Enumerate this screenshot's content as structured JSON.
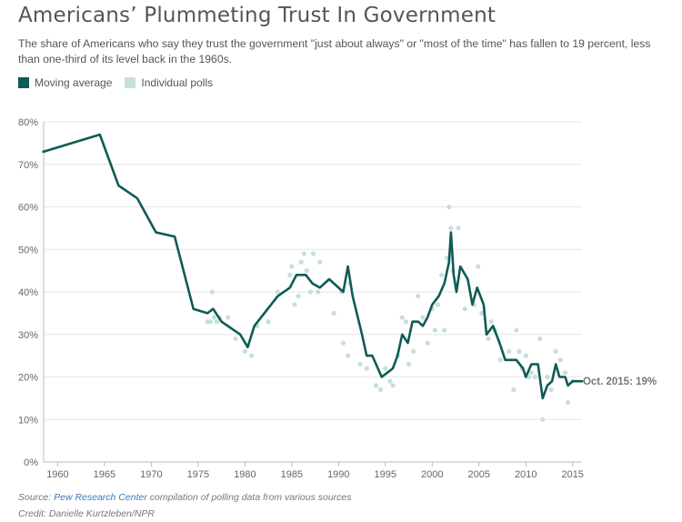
{
  "title": "Americans’ Plummeting Trust In Government",
  "subtitle": "The share of Americans who say they trust the government \"just about always\" or \"most of the time\" has fallen to 19 percent, less than one-third of its level back in the 1960s.",
  "legend": {
    "moving_average": "Moving average",
    "individual_polls": "Individual polls"
  },
  "colors": {
    "line": "#0f5b55",
    "points": "#c4e0dc",
    "grid": "#e6e6e6",
    "axis": "#bbbbbb"
  },
  "source": {
    "prefix": "Source: ",
    "link": "Pew Research Center",
    "suffix": " compilation of polling data from various sources"
  },
  "credit": "Credit: Danielle Kurtzleben/NPR",
  "chart_data": {
    "type": "line",
    "xlim": [
      1958.5,
      2016
    ],
    "ylim": [
      0,
      80
    ],
    "x_ticks": [
      {
        "value": 1960,
        "label": "1960"
      },
      {
        "value": 1965,
        "label": "1965"
      },
      {
        "value": 1970,
        "label": "1970"
      },
      {
        "value": 1975,
        "label": "1975"
      },
      {
        "value": 1980,
        "label": "1980"
      },
      {
        "value": 1985,
        "label": "1985"
      },
      {
        "value": 1990,
        "label": "1990"
      },
      {
        "value": 1995,
        "label": "1995"
      },
      {
        "value": 2000,
        "label": "2000"
      },
      {
        "value": 2005,
        "label": "2005"
      },
      {
        "value": 2010,
        "label": "2010"
      },
      {
        "value": 2015,
        "label": "2015"
      }
    ],
    "y_ticks": [
      {
        "value": 0,
        "label": "0%"
      },
      {
        "value": 10,
        "label": "10%"
      },
      {
        "value": 20,
        "label": "20%"
      },
      {
        "value": 30,
        "label": "30%"
      },
      {
        "value": 40,
        "label": "40%"
      },
      {
        "value": 50,
        "label": "50%"
      },
      {
        "value": 60,
        "label": "60%"
      },
      {
        "value": 70,
        "label": "70%"
      },
      {
        "value": 80,
        "label": "80%"
      }
    ],
    "grid": true,
    "annotation": {
      "text": "Oct. 2015: 19%",
      "x": 2015.8,
      "y": 19
    },
    "moving_average": [
      [
        1958.5,
        73
      ],
      [
        1964.5,
        77
      ],
      [
        1966.5,
        65
      ],
      [
        1968.5,
        62
      ],
      [
        1970.5,
        54
      ],
      [
        1972.5,
        53
      ],
      [
        1974.5,
        36
      ],
      [
        1976,
        35
      ],
      [
        1976.6,
        36
      ],
      [
        1977.5,
        33
      ],
      [
        1979.5,
        30
      ],
      [
        1980.3,
        27
      ],
      [
        1981,
        32
      ],
      [
        1983.5,
        39
      ],
      [
        1984.8,
        41
      ],
      [
        1985.5,
        44
      ],
      [
        1986.5,
        44
      ],
      [
        1987.2,
        42
      ],
      [
        1988,
        41
      ],
      [
        1989,
        43
      ],
      [
        1990.5,
        40
      ],
      [
        1991,
        46
      ],
      [
        1991.5,
        39
      ],
      [
        1992.5,
        30
      ],
      [
        1993,
        25
      ],
      [
        1993.6,
        25
      ],
      [
        1994.2,
        22
      ],
      [
        1994.6,
        20
      ],
      [
        1995.2,
        21
      ],
      [
        1995.8,
        22
      ],
      [
        1996.3,
        25
      ],
      [
        1996.8,
        30
      ],
      [
        1997.4,
        28
      ],
      [
        1997.9,
        33
      ],
      [
        1998.5,
        33
      ],
      [
        1999,
        32
      ],
      [
        1999.5,
        34
      ],
      [
        2000,
        37
      ],
      [
        2000.7,
        39
      ],
      [
        2001.3,
        42
      ],
      [
        2001.8,
        47
      ],
      [
        2002,
        54
      ],
      [
        2002.3,
        44
      ],
      [
        2002.6,
        40
      ],
      [
        2003,
        46
      ],
      [
        2003.8,
        43
      ],
      [
        2004.3,
        37
      ],
      [
        2004.8,
        41
      ],
      [
        2005.5,
        37
      ],
      [
        2005.8,
        30
      ],
      [
        2006.5,
        32
      ],
      [
        2007.2,
        28
      ],
      [
        2007.8,
        24
      ],
      [
        2009,
        24
      ],
      [
        2009.7,
        22
      ],
      [
        2010,
        20
      ],
      [
        2010.6,
        23
      ],
      [
        2011.3,
        23
      ],
      [
        2011.8,
        15
      ],
      [
        2012.3,
        18
      ],
      [
        2012.8,
        19
      ],
      [
        2013.2,
        23
      ],
      [
        2013.6,
        20
      ],
      [
        2014.2,
        20
      ],
      [
        2014.5,
        18
      ],
      [
        2015,
        19
      ],
      [
        2016,
        19
      ]
    ],
    "individual_polls": [
      [
        1958.5,
        73
      ],
      [
        1976,
        33
      ],
      [
        1976.3,
        33
      ],
      [
        1976.5,
        40
      ],
      [
        1976.7,
        34
      ],
      [
        1977,
        33
      ],
      [
        1977.3,
        34
      ],
      [
        1978.2,
        34
      ],
      [
        1979,
        29
      ],
      [
        1980,
        26
      ],
      [
        1980.7,
        25
      ],
      [
        1981.3,
        32
      ],
      [
        1982.5,
        33
      ],
      [
        1983.5,
        40
      ],
      [
        1984.8,
        44
      ],
      [
        1985,
        46
      ],
      [
        1985.3,
        37
      ],
      [
        1985.7,
        39
      ],
      [
        1986,
        47
      ],
      [
        1986.3,
        49
      ],
      [
        1986.6,
        45
      ],
      [
        1987,
        40
      ],
      [
        1987.3,
        49
      ],
      [
        1987.8,
        40
      ],
      [
        1988,
        47
      ],
      [
        1989.5,
        35
      ],
      [
        1990.3,
        40
      ],
      [
        1990.5,
        28
      ],
      [
        1991,
        25
      ],
      [
        1991.2,
        42
      ],
      [
        1992.3,
        23
      ],
      [
        1993,
        22
      ],
      [
        1994,
        18
      ],
      [
        1994.5,
        17
      ],
      [
        1995,
        22
      ],
      [
        1995.5,
        19
      ],
      [
        1995.8,
        18
      ],
      [
        1996.3,
        25
      ],
      [
        1996.8,
        34
      ],
      [
        1997.2,
        33
      ],
      [
        1997.5,
        23
      ],
      [
        1998,
        26
      ],
      [
        1998.5,
        39
      ],
      [
        1999,
        34
      ],
      [
        1999.5,
        28
      ],
      [
        2000,
        36
      ],
      [
        2000.3,
        31
      ],
      [
        2000.6,
        37
      ],
      [
        2001,
        44
      ],
      [
        2001.3,
        31
      ],
      [
        2001.6,
        48
      ],
      [
        2001.8,
        60
      ],
      [
        2002,
        55
      ],
      [
        2002.2,
        45
      ],
      [
        2002.8,
        55
      ],
      [
        2003.5,
        36
      ],
      [
        2004.5,
        37
      ],
      [
        2004.9,
        46
      ],
      [
        2005.3,
        35
      ],
      [
        2006,
        29
      ],
      [
        2006.3,
        33
      ],
      [
        2006.7,
        31
      ],
      [
        2007.3,
        24
      ],
      [
        2008.2,
        26
      ],
      [
        2008.7,
        17
      ],
      [
        2009,
        31
      ],
      [
        2009.3,
        26
      ],
      [
        2009.6,
        22
      ],
      [
        2010,
        25
      ],
      [
        2010.3,
        20
      ],
      [
        2010.6,
        21
      ],
      [
        2011,
        20
      ],
      [
        2011.5,
        29
      ],
      [
        2011.8,
        10
      ],
      [
        2012.3,
        20
      ],
      [
        2012.7,
        17
      ],
      [
        2013.2,
        26
      ],
      [
        2013.7,
        24
      ],
      [
        2014.2,
        21
      ],
      [
        2014.5,
        14
      ],
      [
        2015,
        19
      ]
    ]
  }
}
